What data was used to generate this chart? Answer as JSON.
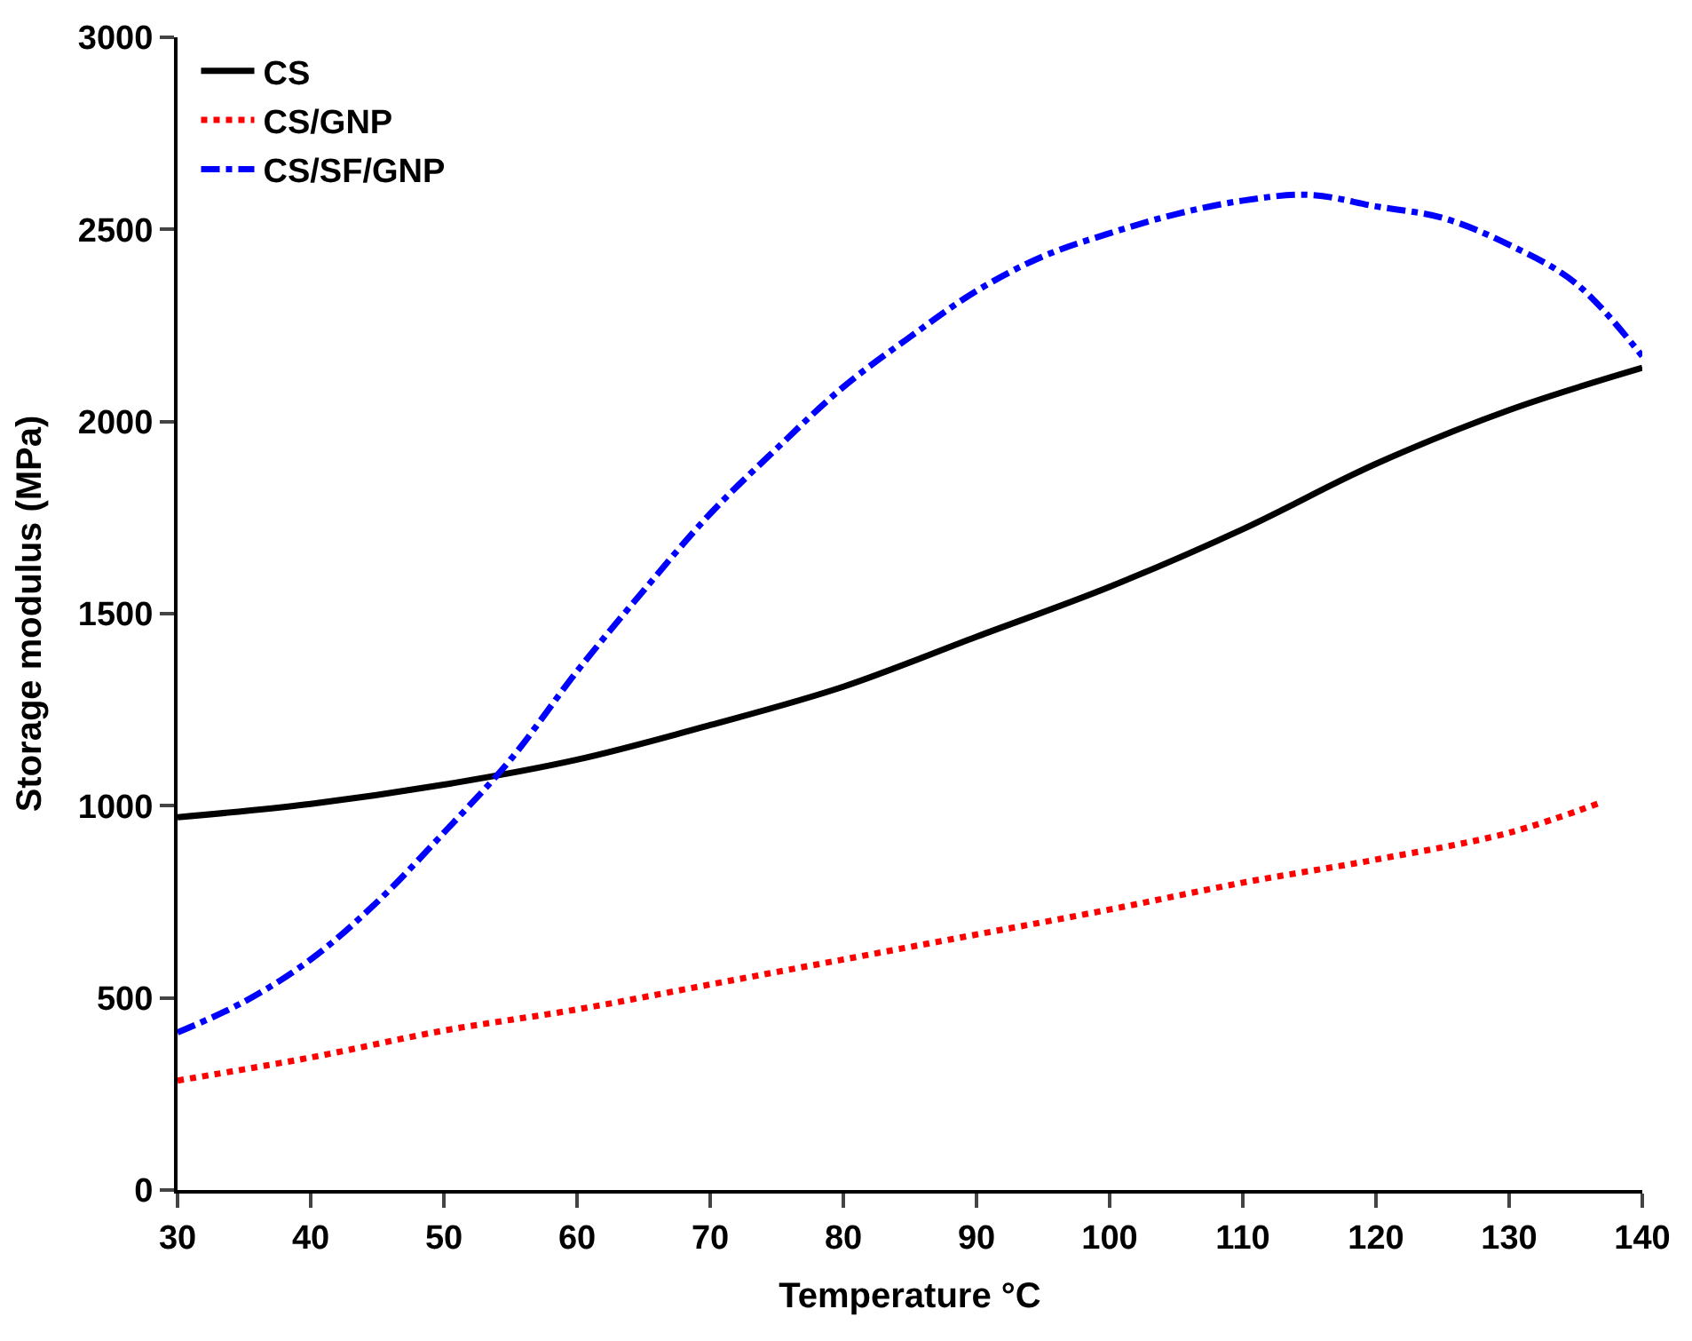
{
  "chart_data": {
    "type": "line",
    "xlabel": "Temperature °C",
    "ylabel": "Storage modulus (MPa)",
    "xlim": [
      30,
      140
    ],
    "xticks": [
      30,
      40,
      50,
      60,
      70,
      80,
      90,
      100,
      110,
      120,
      130,
      140
    ],
    "ylim": [
      0,
      3000
    ],
    "yticks": [
      0,
      500,
      1000,
      1500,
      2000,
      2500,
      3000
    ],
    "legend": "top left",
    "marker": "none",
    "series": [
      {
        "name": "CS",
        "color": "#000000",
        "line_style": "solid",
        "x": [
          30,
          40,
          50,
          60,
          70,
          80,
          90,
          100,
          110,
          120,
          130,
          140
        ],
        "values": [
          970,
          1005,
          1055,
          1120,
          1210,
          1310,
          1440,
          1570,
          1720,
          1890,
          2030,
          2140
        ]
      },
      {
        "name": "CS/GNP",
        "color": "#ff0000",
        "line_style": "dotted",
        "x": [
          30,
          40,
          50,
          60,
          70,
          80,
          90,
          100,
          110,
          120,
          130,
          137
        ],
        "values": [
          285,
          345,
          415,
          470,
          535,
          600,
          665,
          730,
          800,
          860,
          930,
          1010
        ]
      },
      {
        "name": "CS/SF/GNP",
        "color": "#0000ff",
        "line_style": "dashdot",
        "x": [
          30,
          35,
          40,
          45,
          50,
          55,
          60,
          65,
          70,
          75,
          80,
          85,
          90,
          95,
          100,
          105,
          110,
          115,
          120,
          125,
          130,
          135,
          140
        ],
        "values": [
          410,
          490,
          600,
          750,
          930,
          1120,
          1350,
          1560,
          1760,
          1930,
          2090,
          2220,
          2340,
          2430,
          2490,
          2540,
          2575,
          2590,
          2560,
          2530,
          2460,
          2360,
          2170
        ]
      }
    ]
  }
}
